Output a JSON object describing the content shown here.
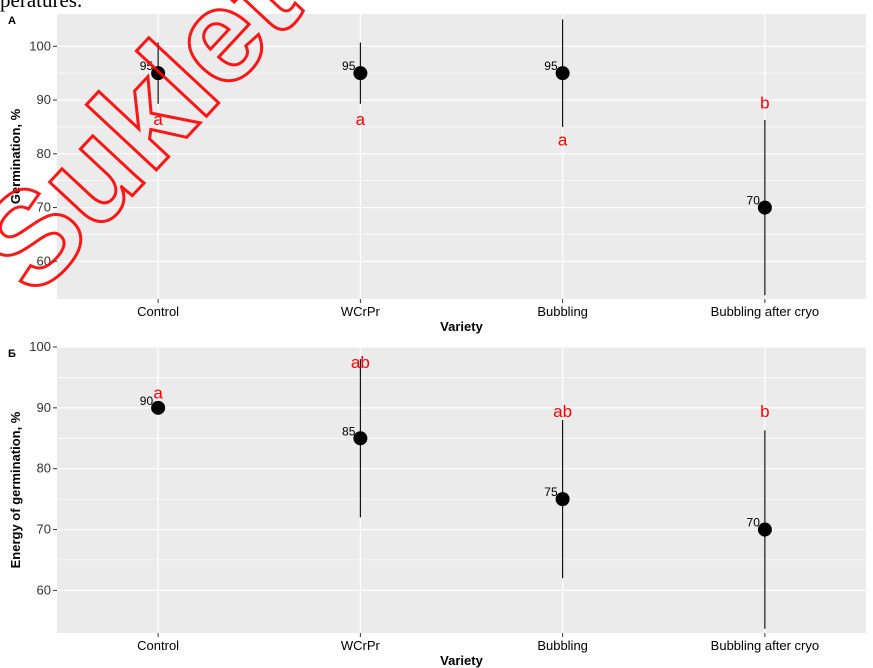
{
  "caption": "peratures.",
  "watermark_text": "Sukleto",
  "colors": {
    "panel_bg": "#ebebeb",
    "grid": "#ffffff",
    "point": "#000000",
    "letter": "#ff0000",
    "watermark": "#ff0000"
  },
  "chart_data": [
    {
      "panel_label": "A",
      "type": "scatter",
      "style": "point-with-error-bar",
      "xlabel": "Variety",
      "ylabel": "Germination, %",
      "categories": [
        "Control",
        "WCrPr",
        "Bubbling",
        "Bubbling after cryo"
      ],
      "values": [
        95,
        95,
        95,
        70
      ],
      "value_labels": [
        "95",
        "95",
        "95",
        "70"
      ],
      "error_low": [
        89.3,
        89.3,
        85.0,
        53.7
      ],
      "error_high": [
        100.7,
        100.7,
        105.0,
        86.3
      ],
      "letters": [
        "a",
        "a",
        "a",
        "b"
      ],
      "letter_y": [
        86.5,
        86.5,
        82.7,
        89.5
      ],
      "y_ticks": [
        60,
        70,
        80,
        90,
        100
      ],
      "ylim": [
        53,
        106
      ],
      "grid": true,
      "legend": "none"
    },
    {
      "panel_label": "Б",
      "type": "scatter",
      "style": "point-with-error-bar",
      "xlabel": "Variety",
      "ylabel": "Energy of germination, %",
      "categories": [
        "Control",
        "WCrPr",
        "Bubbling",
        "Bubbling after cryo"
      ],
      "values": [
        90,
        85,
        75,
        70
      ],
      "value_labels": [
        "90",
        "85",
        "75",
        "70"
      ],
      "error_low": [
        90,
        72.0,
        62.0,
        53.7
      ],
      "error_high": [
        90,
        98.0,
        88.0,
        86.3
      ],
      "letters": [
        "a",
        "ab",
        "ab",
        "b"
      ],
      "letter_y": [
        92.5,
        97.5,
        89.5,
        89.5
      ],
      "y_ticks": [
        60,
        70,
        80,
        90,
        100
      ],
      "ylim": [
        53,
        100
      ],
      "grid": true,
      "legend": "none"
    }
  ]
}
